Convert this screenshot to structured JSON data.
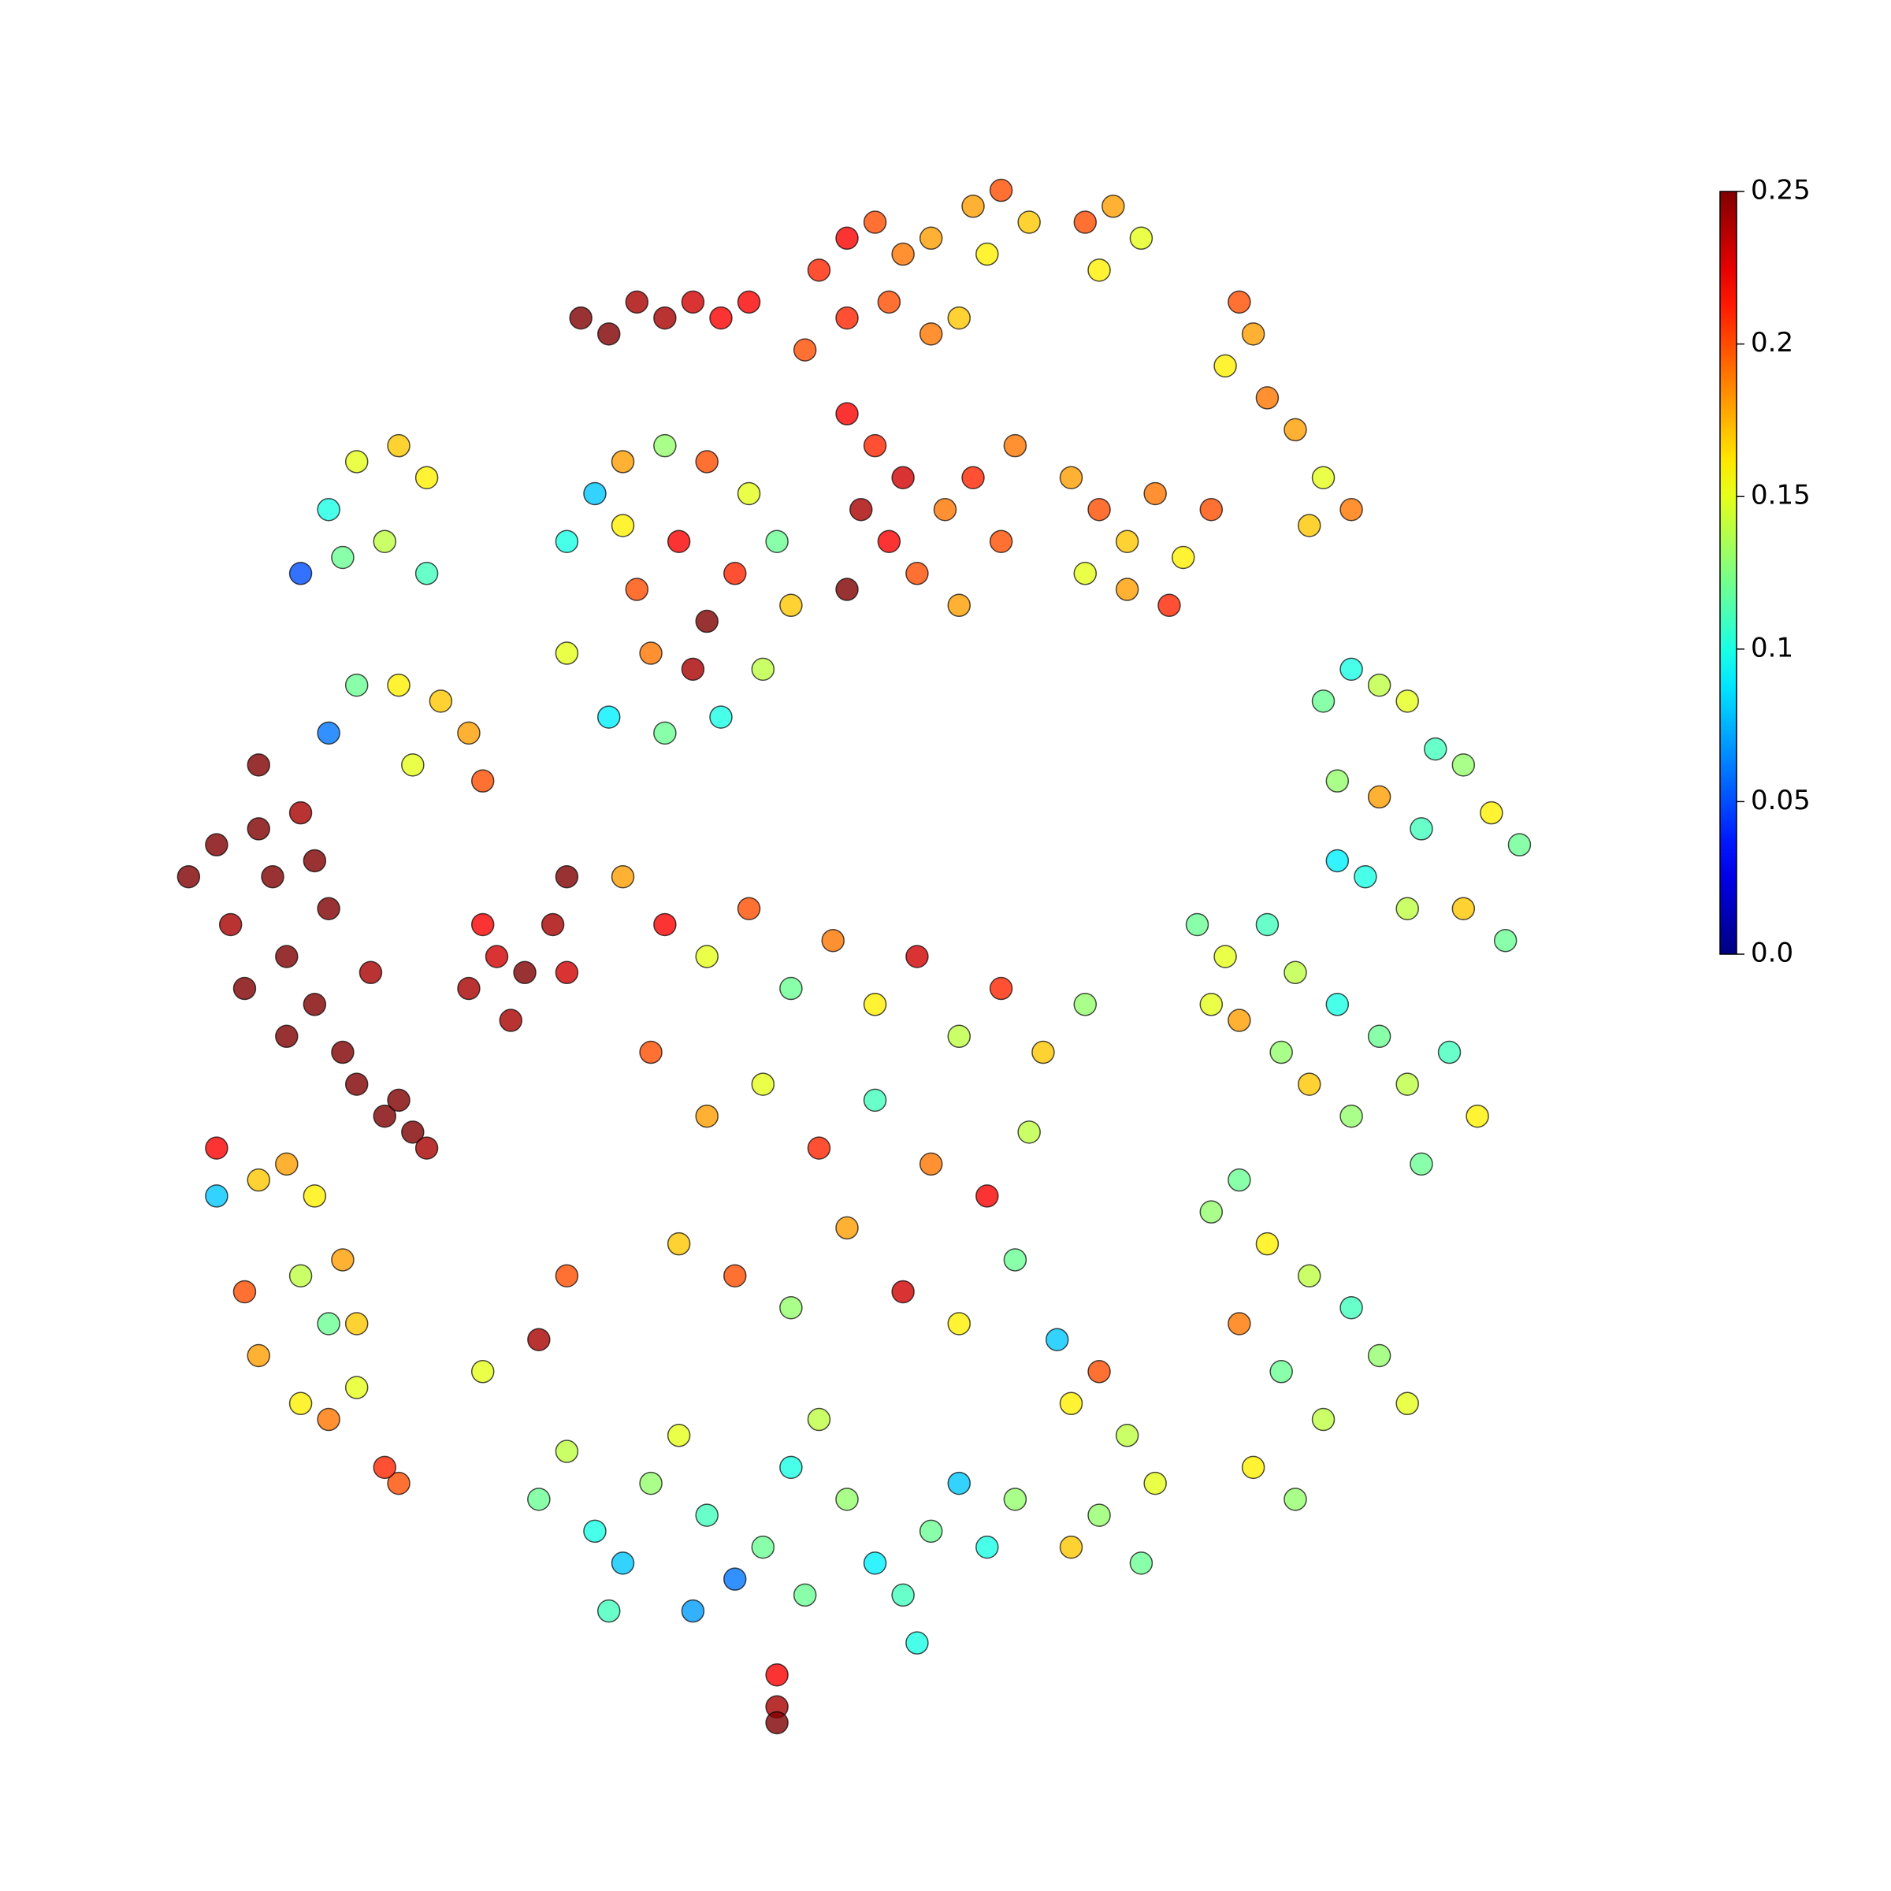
{
  "chart_data": {
    "type": "scatter",
    "cmap": "jet",
    "xlim": [
      0,
      100
    ],
    "ylim": [
      0,
      100
    ],
    "x": [
      31,
      33,
      35,
      37,
      39,
      41,
      43,
      48,
      50,
      52,
      54,
      56,
      50,
      53,
      56,
      58,
      47,
      59,
      61,
      63,
      60,
      67,
      69,
      71,
      68,
      78,
      79,
      77,
      80,
      82,
      84,
      86,
      83,
      50,
      52,
      54,
      51,
      53,
      55,
      57,
      59,
      61,
      50,
      58,
      62,
      66,
      68,
      70,
      72,
      74,
      76,
      70,
      73,
      67,
      3,
      5,
      6,
      8,
      8,
      9,
      10,
      11,
      12,
      13,
      14,
      15,
      16,
      17,
      18,
      19,
      20,
      7,
      10,
      12,
      23,
      25,
      27,
      26,
      29,
      30,
      30,
      24,
      30,
      32,
      34,
      37,
      40,
      43,
      45,
      46,
      44,
      41,
      37,
      33,
      30,
      35,
      38,
      40,
      39,
      42,
      34,
      36,
      84,
      86,
      88,
      90,
      92,
      94,
      96,
      98,
      85,
      88,
      91,
      87,
      90,
      94,
      97,
      85,
      75,
      77,
      80,
      82,
      78,
      81,
      85,
      88,
      90,
      93,
      95,
      86,
      91,
      83,
      76,
      28,
      30,
      32,
      34,
      36,
      38,
      40,
      42,
      44,
      46,
      48,
      50,
      52,
      54,
      56,
      58,
      60,
      62,
      39,
      47,
      55,
      33,
      45,
      45,
      45,
      8,
      10,
      12,
      14,
      15,
      15,
      13,
      11,
      8,
      7,
      11,
      13,
      66,
      68,
      70,
      72,
      68,
      66,
      71,
      76,
      78,
      80,
      83,
      86,
      88,
      90,
      78,
      81,
      84,
      79,
      82,
      34,
      37,
      40,
      43,
      46,
      49,
      52,
      55,
      58,
      61,
      64,
      67,
      36,
      40,
      44,
      48,
      52,
      56,
      60,
      63,
      38,
      42,
      46,
      50,
      54,
      58,
      62,
      65,
      11,
      13,
      15,
      18,
      20,
      14,
      17,
      20,
      13,
      15,
      18,
      21,
      23,
      24,
      19,
      5,
      5,
      18,
      17,
      24,
      30,
      28
    ],
    "y": [
      90,
      89,
      91,
      90,
      91,
      90,
      91,
      93,
      95,
      96,
      94,
      95,
      90,
      91,
      89,
      90,
      88,
      97,
      98,
      96,
      94,
      96,
      97,
      95,
      93,
      91,
      89,
      87,
      85,
      83,
      80,
      78,
      77,
      84,
      82,
      80,
      78,
      76,
      74,
      78,
      80,
      76,
      73,
      72,
      82,
      80,
      78,
      76,
      79,
      75,
      78,
      73,
      72,
      74,
      55,
      57,
      52,
      58,
      62,
      55,
      50,
      59,
      47,
      53,
      44,
      42,
      49,
      40,
      41,
      39,
      38,
      48,
      45,
      56,
      48,
      50,
      49,
      46,
      52,
      55,
      49,
      52,
      76,
      79,
      81,
      82,
      81,
      79,
      76,
      72,
      68,
      65,
      64,
      65,
      69,
      73,
      76,
      71,
      68,
      74,
      77,
      69,
      66,
      68,
      67,
      66,
      63,
      62,
      59,
      57,
      61,
      60,
      58,
      55,
      53,
      53,
      51,
      56,
      52,
      50,
      52,
      49,
      46,
      44,
      47,
      45,
      42,
      44,
      40,
      40,
      37,
      42,
      47,
      16,
      19,
      14,
      12,
      17,
      20,
      15,
      11,
      13,
      18,
      21,
      16,
      12,
      10,
      14,
      17,
      13,
      16,
      9,
      10,
      7,
      9,
      5,
      3,
      2,
      36,
      37,
      35,
      31,
      27,
      23,
      21,
      22,
      25,
      29,
      30,
      27,
      22,
      24,
      20,
      17,
      15,
      13,
      12,
      34,
      36,
      32,
      30,
      28,
      25,
      22,
      27,
      24,
      21,
      18,
      16,
      55,
      52,
      50,
      53,
      48,
      51,
      47,
      50,
      45,
      48,
      44,
      47,
      44,
      40,
      42,
      38,
      41,
      37,
      35,
      39,
      32,
      30,
      28,
      33,
      29,
      27,
      31,
      26,
      74,
      78,
      81,
      82,
      80,
      75,
      76,
      74,
      64,
      67,
      67,
      66,
      64,
      61,
      62,
      38,
      35,
      17,
      18,
      24,
      30,
      26
    ],
    "values": [
      0.25,
      0.25,
      0.24,
      0.24,
      0.23,
      0.22,
      0.22,
      0.21,
      0.22,
      0.2,
      0.19,
      0.18,
      0.21,
      0.2,
      0.19,
      0.17,
      0.2,
      0.18,
      0.2,
      0.17,
      0.16,
      0.2,
      0.18,
      0.15,
      0.16,
      0.2,
      0.18,
      0.16,
      0.19,
      0.18,
      0.15,
      0.19,
      0.17,
      0.22,
      0.21,
      0.23,
      0.24,
      0.22,
      0.2,
      0.19,
      0.21,
      0.2,
      0.25,
      0.18,
      0.19,
      0.18,
      0.2,
      0.17,
      0.19,
      0.16,
      0.2,
      0.18,
      0.21,
      0.15,
      0.25,
      0.25,
      0.24,
      0.25,
      0.25,
      0.25,
      0.25,
      0.24,
      0.25,
      0.25,
      0.25,
      0.25,
      0.24,
      0.25,
      0.25,
      0.25,
      0.24,
      0.25,
      0.25,
      0.25,
      0.24,
      0.23,
      0.25,
      0.24,
      0.24,
      0.25,
      0.23,
      0.22,
      0.1,
      0.08,
      0.18,
      0.13,
      0.2,
      0.15,
      0.12,
      0.17,
      0.14,
      0.1,
      0.12,
      0.09,
      0.15,
      0.2,
      0.22,
      0.25,
      0.24,
      0.21,
      0.16,
      0.19,
      0.12,
      0.1,
      0.14,
      0.15,
      0.11,
      0.13,
      0.16,
      0.12,
      0.13,
      0.18,
      0.11,
      0.1,
      0.14,
      0.17,
      0.12,
      0.09,
      0.12,
      0.15,
      0.11,
      0.14,
      0.18,
      0.13,
      0.1,
      0.12,
      0.14,
      0.11,
      0.16,
      0.13,
      0.12,
      0.17,
      0.15,
      0.12,
      0.14,
      0.1,
      0.08,
      0.13,
      0.15,
      0.11,
      0.06,
      0.12,
      0.1,
      0.14,
      0.13,
      0.09,
      0.11,
      0.12,
      0.08,
      0.1,
      0.13,
      0.07,
      0.12,
      0.1,
      0.11,
      0.22,
      0.24,
      0.25,
      0.17,
      0.18,
      0.16,
      0.18,
      0.17,
      0.15,
      0.19,
      0.16,
      0.18,
      0.2,
      0.14,
      0.12,
      0.16,
      0.2,
      0.14,
      0.15,
      0.13,
      0.17,
      0.12,
      0.13,
      0.12,
      0.16,
      0.14,
      0.11,
      0.13,
      0.15,
      0.19,
      0.12,
      0.14,
      0.16,
      0.13,
      0.18,
      0.22,
      0.15,
      0.2,
      0.12,
      0.19,
      0.16,
      0.23,
      0.14,
      0.21,
      0.17,
      0.13,
      0.2,
      0.18,
      0.15,
      0.21,
      0.11,
      0.19,
      0.22,
      0.14,
      0.17,
      0.2,
      0.13,
      0.18,
      0.23,
      0.16,
      0.12,
      0.08,
      0.05,
      0.1,
      0.15,
      0.17,
      0.16,
      0.12,
      0.14,
      0.11,
      0.06,
      0.12,
      0.16,
      0.17,
      0.18,
      0.2,
      0.15,
      0.22,
      0.08,
      0.2,
      0.21,
      0.15,
      0.2,
      0.24
    ],
    "colorbar": {
      "lim": [
        0,
        0.25
      ],
      "ticks": [
        {
          "value": 0,
          "label": "0.0"
        },
        0.05,
        0.1,
        0.15,
        0.2,
        0.25
      ]
    }
  }
}
